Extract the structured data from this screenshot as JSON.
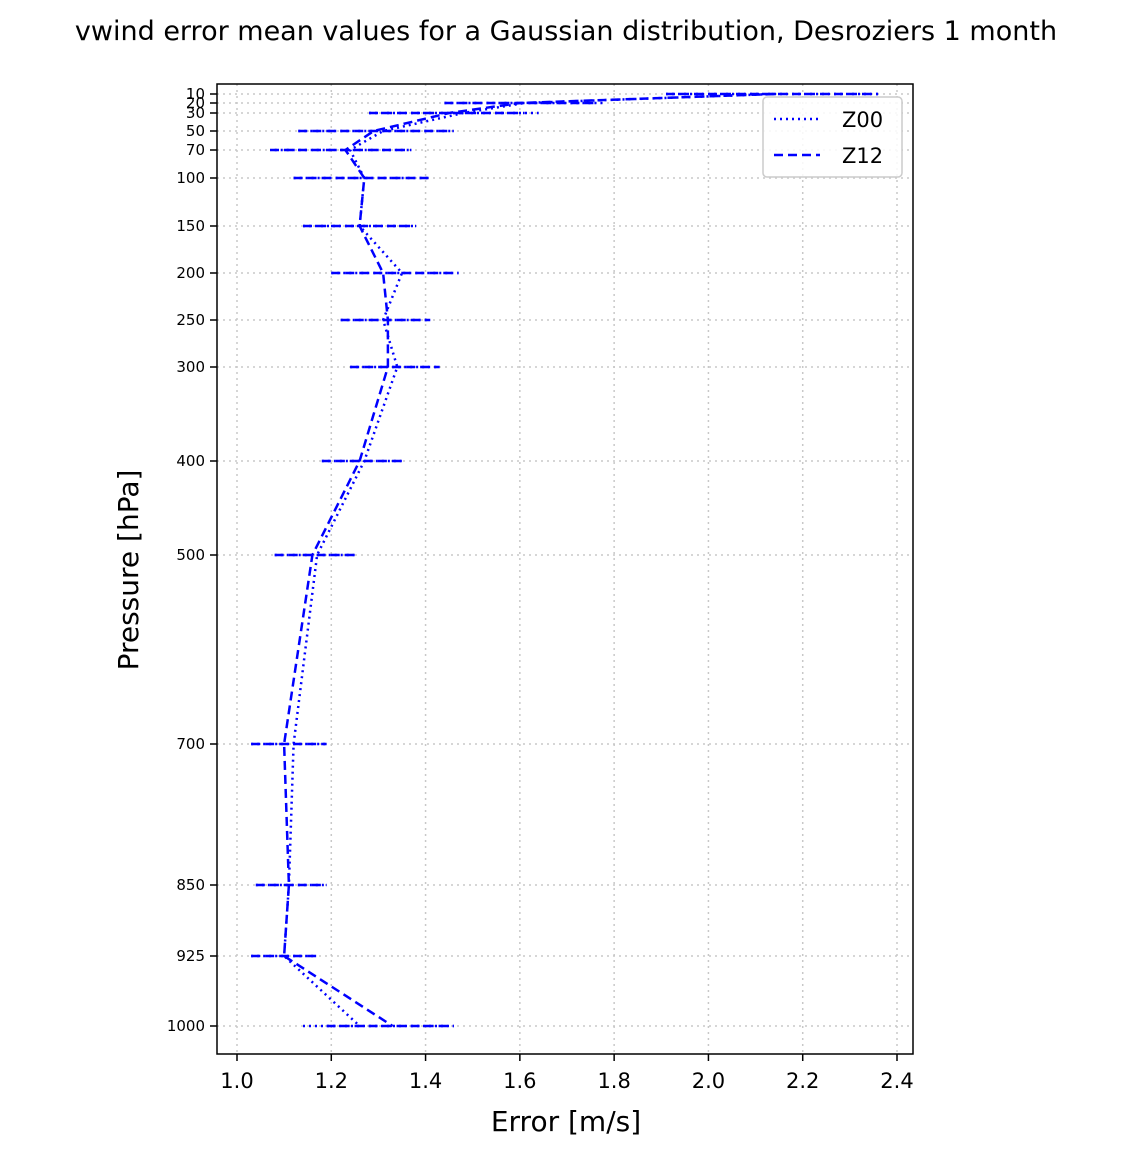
{
  "chart_data": {
    "type": "line",
    "title": "vwind error mean values for a Gaussian distribution, Desroziers 1 month",
    "xlabel": "Error [m/s]",
    "ylabel": "Pressure [hPa]",
    "xlim": [
      0.96,
      2.44
    ],
    "ylim": [
      1055,
      5
    ],
    "yscale": "nonlinear (pressure levels equally spaced by tick position)",
    "grid": true,
    "legend_position": "top-right",
    "xticks": [
      "1.0",
      "1.2",
      "1.4",
      "1.6",
      "1.8",
      "2.0",
      "2.2",
      "2.4"
    ],
    "xtick_values": [
      1.0,
      1.2,
      1.4,
      1.6,
      1.8,
      2.0,
      2.2,
      2.4
    ],
    "yticks": [
      "10",
      "20",
      "30",
      "50",
      "70",
      "100",
      "150",
      "200",
      "250",
      "300",
      "400",
      "500",
      "700",
      "850",
      "925",
      "1000"
    ],
    "ytick_values": [
      10,
      20,
      30,
      50,
      70,
      100,
      150,
      200,
      250,
      300,
      400,
      500,
      700,
      850,
      925,
      1000
    ],
    "series": [
      {
        "name": "Z00",
        "style": "dotted",
        "color": "#0000ff",
        "pressure": [
          10,
          20,
          30,
          50,
          70,
          100,
          150,
          200,
          250,
          300,
          400,
          500,
          700,
          850,
          925,
          1000
        ],
        "values": [
          2.14,
          1.61,
          1.48,
          1.31,
          1.24,
          1.27,
          1.26,
          1.35,
          1.31,
          1.34,
          1.27,
          1.17,
          1.12,
          1.11,
          1.1,
          1.26
        ],
        "error_low": [
          1.91,
          1.44,
          1.28,
          1.13,
          1.08,
          1.12,
          1.14,
          1.2,
          1.22,
          1.24,
          1.18,
          1.08,
          1.03,
          1.04,
          1.03,
          1.14
        ],
        "error_high": [
          2.36,
          1.78,
          1.64,
          1.46,
          1.37,
          1.41,
          1.38,
          1.47,
          1.41,
          1.43,
          1.35,
          1.25,
          1.19,
          1.19,
          1.17,
          1.46
        ]
      },
      {
        "name": "Z12",
        "style": "dashed",
        "color": "#0000ff",
        "pressure": [
          10,
          20,
          30,
          50,
          70,
          100,
          150,
          200,
          250,
          300,
          400,
          500,
          700,
          850,
          925,
          1000
        ],
        "values": [
          2.14,
          1.6,
          1.45,
          1.29,
          1.23,
          1.27,
          1.26,
          1.31,
          1.32,
          1.32,
          1.26,
          1.16,
          1.1,
          1.11,
          1.1,
          1.33
        ],
        "error_low": [
          1.91,
          1.44,
          1.28,
          1.13,
          1.07,
          1.12,
          1.14,
          1.2,
          1.22,
          1.24,
          1.18,
          1.08,
          1.03,
          1.04,
          1.03,
          1.19
        ],
        "error_high": [
          2.36,
          1.76,
          1.61,
          1.46,
          1.37,
          1.41,
          1.38,
          1.47,
          1.41,
          1.43,
          1.35,
          1.25,
          1.19,
          1.19,
          1.17,
          1.46
        ]
      }
    ]
  }
}
